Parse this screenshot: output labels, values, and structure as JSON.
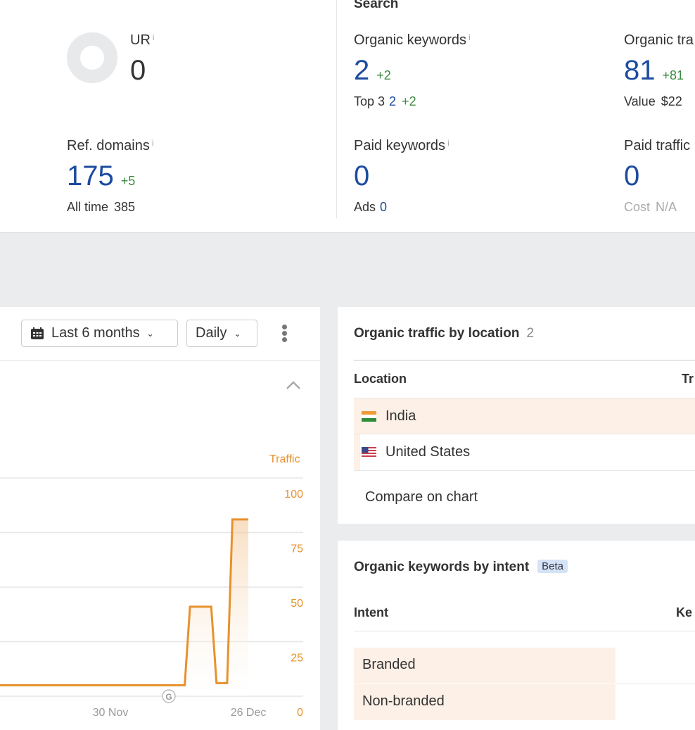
{
  "backlinks": {
    "ur": {
      "label": "UR",
      "value": "0"
    },
    "ref_domains": {
      "label": "Ref. domains",
      "value": "175",
      "delta": "+5",
      "sub_label": "All time",
      "sub_value": "385"
    }
  },
  "search": {
    "title": "Search",
    "organic_keywords": {
      "label": "Organic keywords",
      "value": "2",
      "delta": "+2",
      "sub_label": "Top 3",
      "sub_value": "2",
      "sub_delta": "+2"
    },
    "organic_traffic": {
      "label": "Organic tra",
      "value": "81",
      "delta": "+81",
      "sub_label": "Value",
      "sub_value": "$22"
    },
    "paid_keywords": {
      "label": "Paid keywords",
      "value": "0",
      "sub_label": "Ads",
      "sub_value": "0"
    },
    "paid_traffic": {
      "label": "Paid traffic",
      "value": "0",
      "sub_label": "Cost",
      "sub_value": "N/A"
    }
  },
  "info_glyph": "i",
  "chart_controls": {
    "range": "Last 6 months",
    "interval": "Daily"
  },
  "chart_data": {
    "type": "line",
    "series": [
      {
        "name": "Traffic",
        "color": "#e8912d",
        "points": [
          {
            "x": "9 Nov",
            "y": 5
          },
          {
            "x": "14 Dec",
            "y": 5
          },
          {
            "x": "15 Dec",
            "y": 41
          },
          {
            "x": "19 Dec",
            "y": 41
          },
          {
            "x": "20 Dec",
            "y": 6
          },
          {
            "x": "22 Dec",
            "y": 6
          },
          {
            "x": "23 Dec",
            "y": 81
          },
          {
            "x": "26 Dec",
            "y": 81
          }
        ]
      }
    ],
    "ylabel": "Traffic",
    "ylim": [
      0,
      100
    ],
    "yticks": [
      "100",
      "75",
      "50",
      "25",
      "0"
    ],
    "xticks": [
      "30 Nov",
      "26 Dec"
    ],
    "annotation": "G",
    "grid": true
  },
  "location": {
    "title": "Organic traffic by location",
    "count": "2",
    "columns": [
      "Location",
      "Tr"
    ],
    "rows": [
      {
        "name": "India"
      },
      {
        "name": "United States"
      }
    ],
    "compare": "Compare on chart"
  },
  "intent": {
    "title": "Organic keywords by intent",
    "badge": "Beta",
    "columns": [
      "Intent",
      "Ke"
    ],
    "rows": [
      {
        "name": "Branded"
      },
      {
        "name": "Non-branded"
      }
    ]
  }
}
